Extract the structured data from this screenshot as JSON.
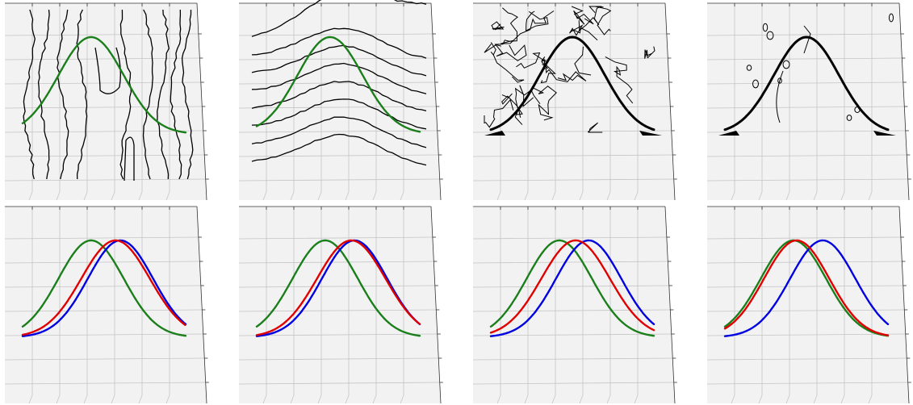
{
  "colors": {
    "pane": "#f2f2f2",
    "pane_edge": "#c8c8c8",
    "grid": "#c4c4c4",
    "axis": "#333333",
    "target": "#1a7f1a",
    "red": "#e00000",
    "blue": "#0000e0",
    "contour": "#000000"
  },
  "chart_data": [
    {
      "type": "surface-3d",
      "row": 1,
      "col": 1,
      "field": "vertical-contours",
      "series": [
        {
          "color": "green",
          "center": 0.42,
          "width": 0.2
        }
      ]
    },
    {
      "type": "surface-3d",
      "row": 1,
      "col": 2,
      "field": "curved-contours",
      "series": [
        {
          "color": "green",
          "center": 0.45,
          "width": 0.2
        }
      ]
    },
    {
      "type": "surface-3d",
      "row": 1,
      "col": 3,
      "field": "noisy-contours",
      "series": [
        {
          "color": "black",
          "center": 0.5,
          "width": 0.2
        }
      ]
    },
    {
      "type": "surface-3d",
      "row": 1,
      "col": 4,
      "field": "sparse-contours",
      "series": [
        {
          "color": "black",
          "center": 0.5,
          "width": 0.2
        }
      ]
    },
    {
      "type": "surface-3d",
      "row": 2,
      "col": 1,
      "series": [
        {
          "color": "green",
          "center": 0.42,
          "width": 0.2
        },
        {
          "color": "blue",
          "center": 0.6,
          "width": 0.2
        },
        {
          "color": "red",
          "center": 0.57,
          "width": 0.21
        }
      ]
    },
    {
      "type": "surface-3d",
      "row": 2,
      "col": 2,
      "series": [
        {
          "color": "green",
          "center": 0.42,
          "width": 0.2
        },
        {
          "color": "blue",
          "center": 0.6,
          "width": 0.2
        },
        {
          "color": "red",
          "center": 0.58,
          "width": 0.21
        }
      ]
    },
    {
      "type": "surface-3d",
      "row": 2,
      "col": 3,
      "series": [
        {
          "color": "green",
          "center": 0.42,
          "width": 0.2
        },
        {
          "color": "blue",
          "center": 0.6,
          "width": 0.2
        },
        {
          "color": "red",
          "center": 0.52,
          "width": 0.21
        }
      ]
    },
    {
      "type": "surface-3d",
      "row": 2,
      "col": 4,
      "series": [
        {
          "color": "green",
          "center": 0.42,
          "width": 0.2
        },
        {
          "color": "blue",
          "center": 0.6,
          "width": 0.2
        },
        {
          "color": "red",
          "center": 0.44,
          "width": 0.2
        }
      ]
    }
  ]
}
